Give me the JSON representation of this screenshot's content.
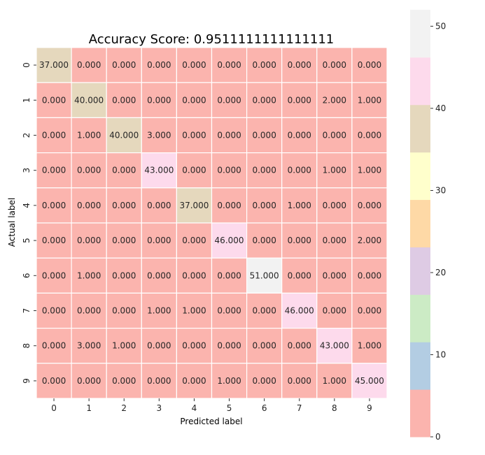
{
  "chart_data": {
    "type": "heatmap",
    "title": "Accuracy Score: 0.9511111111111111",
    "xlabel": "Predicted label",
    "ylabel": "Actual label",
    "x_categories": [
      "0",
      "1",
      "2",
      "3",
      "4",
      "5",
      "6",
      "7",
      "8",
      "9"
    ],
    "y_categories": [
      "0",
      "1",
      "2",
      "3",
      "4",
      "5",
      "6",
      "7",
      "8",
      "9"
    ],
    "values": [
      [
        37,
        0,
        0,
        0,
        0,
        0,
        0,
        0,
        0,
        0
      ],
      [
        0,
        40,
        0,
        0,
        0,
        0,
        0,
        0,
        2,
        1
      ],
      [
        0,
        1,
        40,
        3,
        0,
        0,
        0,
        0,
        0,
        0
      ],
      [
        0,
        0,
        0,
        43,
        0,
        0,
        0,
        0,
        1,
        1
      ],
      [
        0,
        0,
        0,
        0,
        37,
        0,
        0,
        1,
        0,
        0
      ],
      [
        0,
        0,
        0,
        0,
        0,
        46,
        0,
        0,
        0,
        2
      ],
      [
        0,
        1,
        0,
        0,
        0,
        0,
        51,
        0,
        0,
        0
      ],
      [
        0,
        0,
        0,
        1,
        1,
        0,
        0,
        46,
        0,
        0
      ],
      [
        0,
        3,
        1,
        0,
        0,
        0,
        0,
        0,
        43,
        1
      ],
      [
        0,
        0,
        0,
        0,
        0,
        1,
        0,
        0,
        1,
        45
      ]
    ],
    "value_format": "0.000",
    "colormap": "Pastel1",
    "colorbar": {
      "range": [
        0,
        52
      ],
      "ticks": [
        0,
        10,
        20,
        30,
        40,
        50
      ],
      "colors": [
        "#fbb4ae",
        "#b3cde3",
        "#ccebc5",
        "#decbe4",
        "#fed9a6",
        "#ffffcc",
        "#e5d8bd",
        "#fddaec",
        "#f2f2f2"
      ]
    }
  }
}
